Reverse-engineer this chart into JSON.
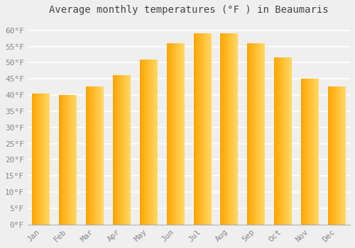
{
  "title": "Average monthly temperatures (°F ) in Beaumaris",
  "months": [
    "Jan",
    "Feb",
    "Mar",
    "Apr",
    "May",
    "Jun",
    "Jul",
    "Aug",
    "Sep",
    "Oct",
    "Nov",
    "Dec"
  ],
  "values": [
    40.5,
    40.0,
    42.5,
    46.0,
    51.0,
    56.0,
    59.0,
    59.0,
    56.0,
    51.5,
    45.0,
    42.5
  ],
  "bar_color_light": "#FFD966",
  "bar_color_dark": "#FFA500",
  "background_color": "#EFEFEF",
  "grid_color": "#FFFFFF",
  "text_color": "#888888",
  "title_color": "#444444",
  "ylim": [
    0,
    63
  ],
  "yticks": [
    0,
    5,
    10,
    15,
    20,
    25,
    30,
    35,
    40,
    45,
    50,
    55,
    60
  ],
  "title_fontsize": 10,
  "tick_fontsize": 8,
  "bar_width": 0.65
}
